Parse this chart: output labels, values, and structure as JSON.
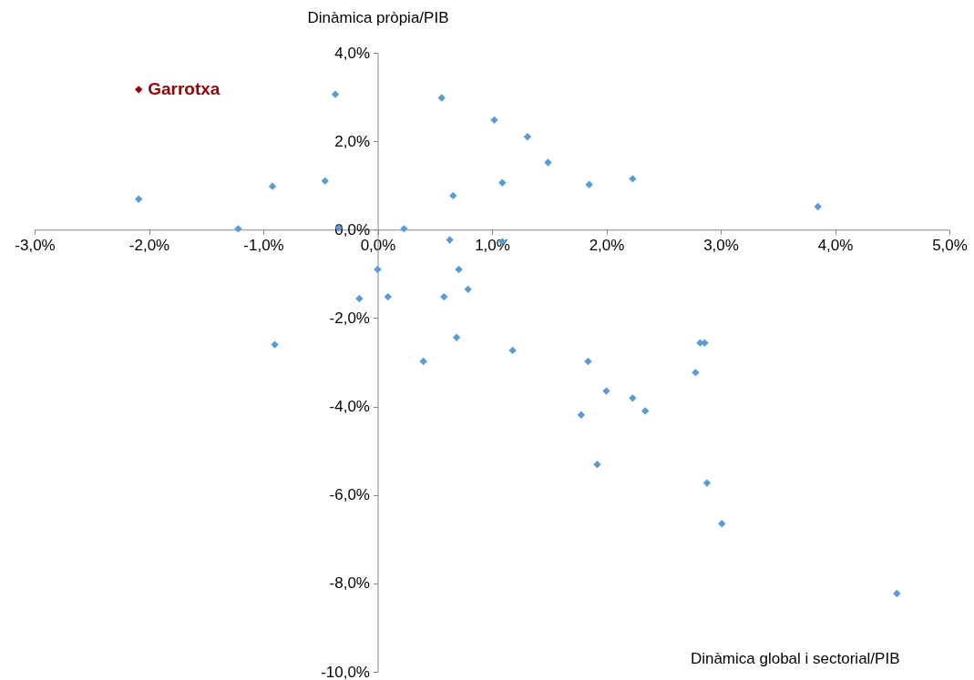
{
  "chart_data": {
    "type": "scatter",
    "xlabel": "Dinàmica global i sectorial/PIB",
    "ylabel": "Dinàmica pròpia/PIB",
    "xlim": [
      -3,
      5
    ],
    "ylim": [
      -10,
      4
    ],
    "xticks": [
      {
        "value": -3,
        "label": "-3,0%"
      },
      {
        "value": -2,
        "label": "-2,0%"
      },
      {
        "value": -1,
        "label": "-1,0%"
      },
      {
        "value": 0,
        "label": "0,0%"
      },
      {
        "value": 1,
        "label": "1,0%"
      },
      {
        "value": 2,
        "label": "2,0%"
      },
      {
        "value": 3,
        "label": "3,0%"
      },
      {
        "value": 4,
        "label": "4,0%"
      },
      {
        "value": 5,
        "label": "5,0%"
      }
    ],
    "yticks": [
      {
        "value": -10,
        "label": "-10,0%"
      },
      {
        "value": -8,
        "label": "-8,0%"
      },
      {
        "value": -6,
        "label": "-6,0%"
      },
      {
        "value": -4,
        "label": "-4,0%"
      },
      {
        "value": -2,
        "label": "-2,0%"
      },
      {
        "value": 0,
        "label": "0,0%"
      },
      {
        "value": 2,
        "label": "2,0%"
      },
      {
        "value": 4,
        "label": "4,0%"
      }
    ],
    "marker": "diamond",
    "grid": false,
    "legend": false,
    "series": [
      {
        "color": "#5b9bd5",
        "x": [
          -0.37,
          0.56,
          1.02,
          1.31,
          1.49,
          1.85,
          2.23,
          1.09,
          0.66,
          -2.09,
          -0.92,
          -0.46,
          3.85,
          -1.22,
          -0.34,
          0.23,
          0.63,
          1.09,
          0.0,
          0.71,
          -0.16,
          0.09,
          0.58,
          0.79,
          -0.9,
          0.69,
          0.4,
          1.18,
          1.84,
          2.82,
          2.86,
          2.78,
          2.0,
          2.23,
          2.34,
          1.78,
          1.92,
          2.88,
          3.01,
          4.54
        ],
        "values": [
          3.06,
          2.98,
          2.48,
          2.1,
          1.52,
          1.02,
          1.15,
          1.06,
          0.77,
          0.69,
          0.98,
          1.1,
          0.52,
          0.02,
          0.04,
          0.02,
          -0.23,
          -0.27,
          -0.9,
          -0.9,
          -1.56,
          -1.52,
          -1.52,
          -1.35,
          -2.6,
          -2.44,
          -2.98,
          -2.73,
          -2.98,
          -2.56,
          -2.56,
          -3.23,
          -3.65,
          -3.81,
          -4.1,
          -4.19,
          -5.31,
          -5.73,
          -6.65,
          -8.23
        ]
      },
      {
        "name": "Garrotxa",
        "color": "#990000",
        "x": [
          -2.09
        ],
        "values": [
          3.17
        ]
      }
    ]
  }
}
